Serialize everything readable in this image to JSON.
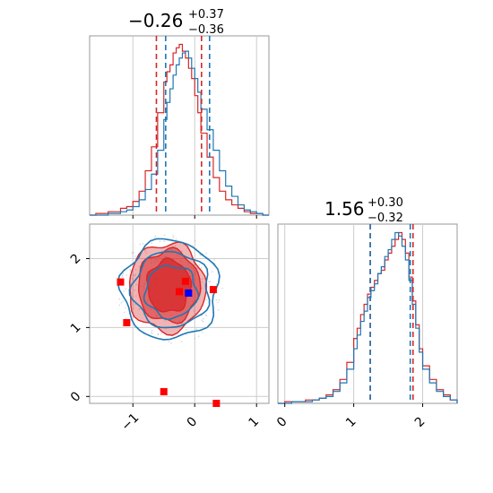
{
  "chart_data": [
    {
      "type": "histogram",
      "panel": "top-left",
      "title_value": "−0.26",
      "title_upper": "+0.37",
      "title_lower": "−0.36",
      "xlim": [
        -1.7,
        1.2
      ],
      "xticks": [
        -1,
        0,
        1
      ],
      "grid": true,
      "series": [
        {
          "color": "#d62728",
          "bins": [
            -1.7,
            -1.6,
            -1.5,
            -1.4,
            -1.3,
            -1.2,
            -1.1,
            -1.0,
            -0.9,
            -0.8,
            -0.7,
            -0.6,
            -0.5,
            -0.45,
            -0.4,
            -0.35,
            -0.3,
            -0.25,
            -0.2,
            -0.15,
            -0.1,
            -0.05,
            0.0,
            0.05,
            0.1,
            0.2,
            0.3,
            0.4,
            0.5,
            0.6,
            0.7,
            0.8,
            0.9,
            1.0,
            1.1,
            1.2
          ],
          "counts": [
            0,
            1,
            1,
            2,
            2,
            4,
            5,
            8,
            14,
            26,
            40,
            60,
            78,
            84,
            88,
            95,
            98,
            100,
            96,
            92,
            86,
            80,
            70,
            60,
            48,
            34,
            22,
            14,
            9,
            6,
            4,
            2,
            1,
            1,
            0
          ]
        },
        {
          "color": "#1f77b4",
          "bins": [
            -1.7,
            -1.6,
            -1.5,
            -1.4,
            -1.3,
            -1.2,
            -1.1,
            -1.0,
            -0.9,
            -0.8,
            -0.7,
            -0.6,
            -0.5,
            -0.45,
            -0.4,
            -0.35,
            -0.3,
            -0.25,
            -0.2,
            -0.15,
            -0.1,
            -0.05,
            0.0,
            0.05,
            0.1,
            0.2,
            0.3,
            0.4,
            0.5,
            0.6,
            0.7,
            0.8,
            0.9,
            1.0,
            1.1,
            1.2
          ],
          "counts": [
            0,
            0,
            0,
            1,
            1,
            2,
            3,
            5,
            9,
            15,
            24,
            38,
            56,
            66,
            74,
            82,
            88,
            92,
            95,
            96,
            92,
            86,
            80,
            72,
            62,
            50,
            38,
            26,
            17,
            11,
            6,
            3,
            2,
            1,
            0
          ]
        }
      ],
      "quantile_lines": [
        {
          "color": "#d62728",
          "x": [
            -0.62,
            0.11
          ]
        },
        {
          "color": "#1f77b4",
          "x": [
            -0.47,
            0.24
          ]
        }
      ]
    },
    {
      "type": "contour",
      "panel": "bottom-left",
      "xlim": [
        -1.7,
        1.2
      ],
      "ylim": [
        -0.1,
        2.5
      ],
      "xticks": [
        -1,
        0,
        1
      ],
      "yticks": [
        0,
        1,
        2
      ],
      "grid": true,
      "contours": [
        {
          "color": "#d62728",
          "filled": true,
          "center": [
            -0.45,
            1.58
          ],
          "radii": [
            0.62,
            0.64
          ],
          "opacity": 0.35
        },
        {
          "color": "#d62728",
          "filled": true,
          "center": [
            -0.42,
            1.6
          ],
          "radii": [
            0.5,
            0.52
          ],
          "opacity": 0.55
        },
        {
          "color": "#d62728",
          "filled": true,
          "center": [
            -0.42,
            1.6
          ],
          "radii": [
            0.35,
            0.38
          ],
          "opacity": 0.75
        },
        {
          "color": "#1f77b4",
          "filled": false,
          "center": [
            -0.4,
            1.55
          ],
          "radii": [
            0.78,
            0.72
          ]
        },
        {
          "color": "#1f77b4",
          "filled": false,
          "center": [
            -0.38,
            1.55
          ],
          "radii": [
            0.62,
            0.55
          ]
        },
        {
          "color": "#1f77b4",
          "filled": false,
          "center": [
            -0.38,
            1.52
          ],
          "radii": [
            0.42,
            0.38
          ]
        }
      ],
      "red_markers": [
        {
          "x": -1.2,
          "y": 1.66
        },
        {
          "x": -1.1,
          "y": 1.07
        },
        {
          "x": -0.25,
          "y": 1.52
        },
        {
          "x": -0.15,
          "y": 1.67
        },
        {
          "x": 0.3,
          "y": 1.55
        },
        {
          "x": -0.5,
          "y": 0.07
        },
        {
          "x": 0.35,
          "y": -0.1
        }
      ],
      "blue_markers": [
        {
          "x": -0.1,
          "y": 1.5
        }
      ]
    },
    {
      "type": "histogram",
      "panel": "bottom-right",
      "title_value": "1.56",
      "title_upper": "+0.30",
      "title_lower": "−0.32",
      "xlim": [
        -0.1,
        2.5
      ],
      "xticks": [
        0,
        1,
        2
      ],
      "grid": true,
      "series": [
        {
          "color": "#d62728",
          "bins": [
            -0.1,
            0.0,
            0.1,
            0.2,
            0.3,
            0.4,
            0.5,
            0.6,
            0.7,
            0.8,
            0.9,
            1.0,
            1.05,
            1.1,
            1.15,
            1.2,
            1.25,
            1.3,
            1.35,
            1.4,
            1.45,
            1.5,
            1.55,
            1.6,
            1.65,
            1.7,
            1.75,
            1.8,
            1.85,
            1.9,
            1.95,
            2.0,
            2.1,
            2.2,
            2.3,
            2.4,
            2.5
          ],
          "counts": [
            0,
            1,
            1,
            1,
            2,
            2,
            3,
            5,
            8,
            14,
            24,
            38,
            44,
            52,
            58,
            64,
            68,
            72,
            76,
            78,
            84,
            88,
            92,
            96,
            100,
            96,
            88,
            74,
            60,
            46,
            32,
            22,
            14,
            8,
            5,
            2
          ]
        },
        {
          "color": "#1f77b4",
          "bins": [
            -0.1,
            0.0,
            0.1,
            0.2,
            0.3,
            0.4,
            0.5,
            0.6,
            0.7,
            0.8,
            0.9,
            1.0,
            1.05,
            1.1,
            1.15,
            1.2,
            1.25,
            1.3,
            1.35,
            1.4,
            1.45,
            1.5,
            1.55,
            1.6,
            1.65,
            1.7,
            1.75,
            1.8,
            1.85,
            1.9,
            1.95,
            2.0,
            2.1,
            2.2,
            2.3,
            2.4,
            2.5
          ],
          "counts": [
            0,
            0,
            1,
            1,
            1,
            2,
            3,
            4,
            7,
            12,
            20,
            32,
            40,
            48,
            54,
            62,
            66,
            70,
            76,
            80,
            86,
            90,
            96,
            100,
            98,
            92,
            84,
            72,
            58,
            44,
            30,
            20,
            12,
            7,
            4,
            2
          ]
        }
      ],
      "quantile_lines": [
        {
          "color": "#d62728",
          "x": [
            1.24,
            1.86
          ]
        },
        {
          "color": "#1f77b4",
          "x": [
            1.24,
            1.82
          ]
        }
      ]
    }
  ]
}
